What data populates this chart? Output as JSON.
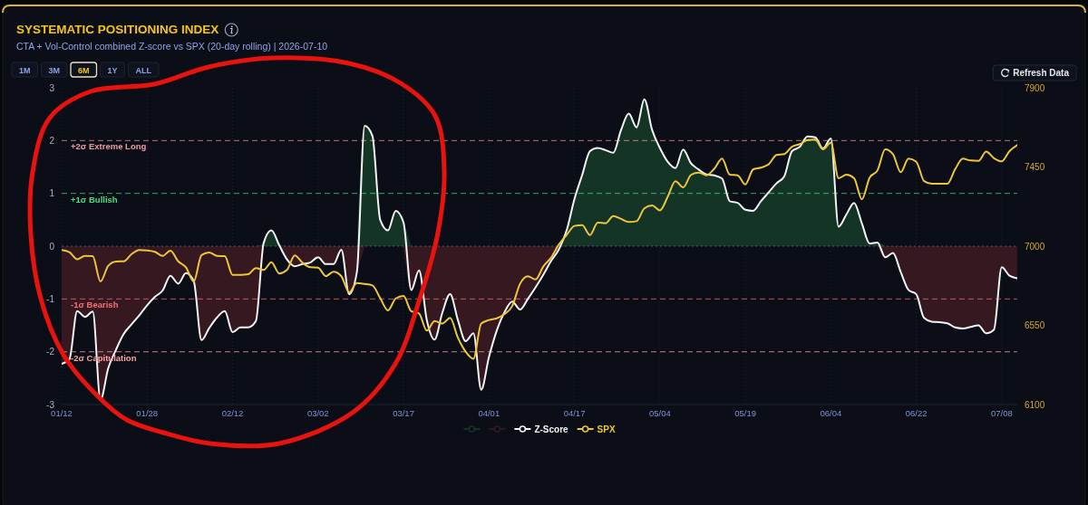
{
  "chart_data": {
    "type": "line",
    "title": "SYSTEMATIC POSITIONING INDEX",
    "subtitle": "CTA + Vol-Control combined Z-score vs SPX (20-day rolling) | 2026-07-10",
    "categories": [
      "01/12",
      null,
      null,
      null,
      null,
      null,
      null,
      null,
      null,
      null,
      null,
      "01/28",
      null,
      null,
      null,
      null,
      null,
      null,
      null,
      null,
      null,
      null,
      "02/12",
      null,
      null,
      null,
      null,
      null,
      null,
      null,
      null,
      null,
      null,
      "03/02",
      null,
      null,
      null,
      null,
      null,
      null,
      null,
      null,
      null,
      null,
      "03/17",
      null,
      null,
      null,
      null,
      null,
      null,
      null,
      null,
      null,
      null,
      "04/01",
      null,
      null,
      null,
      null,
      null,
      null,
      null,
      null,
      null,
      null,
      "04/17",
      null,
      null,
      null,
      null,
      null,
      null,
      null,
      null,
      null,
      null,
      "05/04",
      null,
      null,
      null,
      null,
      null,
      null,
      null,
      null,
      null,
      null,
      "05/19",
      null,
      null,
      null,
      null,
      null,
      null,
      null,
      null,
      null,
      null,
      "06/04",
      null,
      null,
      null,
      null,
      null,
      null,
      null,
      null,
      null,
      null,
      "06/22",
      null,
      null,
      null,
      null,
      null,
      null,
      null,
      null,
      null,
      null,
      "07/08",
      null,
      null
    ],
    "series": [
      {
        "type": "area",
        "color": "#143526",
        "values": [
          null,
          null,
          null,
          null,
          null,
          null,
          null,
          null,
          null,
          null,
          null,
          null,
          null,
          null,
          null,
          null,
          null,
          null,
          null,
          null,
          null,
          null,
          null,
          null,
          null,
          0,
          0.06,
          0.3,
          0.02,
          0,
          null,
          null,
          null,
          null,
          null,
          null,
          null,
          null,
          0,
          2.28,
          2.09,
          0.5,
          0.3,
          0.67,
          0.45,
          0,
          null,
          null,
          null,
          null,
          null,
          null,
          null,
          null,
          null,
          null,
          null,
          null,
          null,
          null,
          null,
          null,
          null,
          null,
          0,
          0.3,
          0.89,
          1.35,
          1.8,
          1.86,
          1.82,
          1.77,
          2.2,
          2.51,
          2.25,
          2.78,
          2.2,
          1.86,
          1.6,
          1.48,
          1.83,
          1.57,
          1.45,
          1.36,
          1.34,
          1.28,
          0.85,
          0.82,
          0.69,
          0.67,
          0.85,
          1.02,
          1.19,
          1.32,
          1.8,
          1.88,
          2.08,
          2.06,
          1.85,
          2.04,
          0.37,
          0.6,
          0.82,
          0.43,
          0.05,
          0.07,
          0,
          null,
          null,
          null,
          null,
          null,
          null,
          null,
          null,
          null,
          null,
          null,
          null,
          null,
          null,
          null,
          null,
          null
        ]
      },
      {
        "type": "area",
        "color": "#361820",
        "values": [
          -2.23,
          -2.14,
          -1.23,
          -1.34,
          -1.24,
          -2.91,
          -2.31,
          -1.96,
          -1.66,
          -1.48,
          -1.31,
          -1.12,
          -0.96,
          -0.84,
          -0.56,
          -0.71,
          -0.51,
          -0.66,
          -1.78,
          -1.55,
          -1.35,
          -1.23,
          -1.63,
          -1.54,
          -1.54,
          -1.42,
          0,
          null,
          0,
          -0.25,
          -0.38,
          -0.34,
          -0.31,
          -0.21,
          -0.34,
          -0.34,
          -0.07,
          -0.91,
          -0.49,
          0,
          null,
          null,
          null,
          null,
          0,
          -0.83,
          -0.46,
          -1.4,
          -1.77,
          -1.26,
          -0.91,
          -1.4,
          -1.8,
          -1.65,
          -2.72,
          -2.1,
          -1.6,
          -1.25,
          -1.05,
          -1.2,
          -1.0,
          -0.78,
          -0.54,
          -0.28,
          -0.06,
          0,
          null,
          null,
          null,
          null,
          null,
          null,
          null,
          null,
          null,
          null,
          null,
          null,
          null,
          null,
          null,
          null,
          null,
          null,
          null,
          null,
          null,
          null,
          null,
          null,
          null,
          null,
          null,
          null,
          null,
          null,
          null,
          null,
          null,
          null,
          null,
          null,
          null,
          null,
          null,
          0,
          -0.21,
          -0.13,
          -0.49,
          -0.83,
          -0.91,
          -1.36,
          -1.43,
          -1.44,
          -1.46,
          -1.54,
          -1.56,
          -1.53,
          -1.5,
          -1.65,
          -1.58,
          -0.4,
          -0.56,
          -0.61
        ]
      },
      {
        "name": "Z-Score",
        "color": "#f4f4f4",
        "values": [
          -2.23,
          -2.14,
          -1.23,
          -1.34,
          -1.24,
          -2.91,
          -2.31,
          -1.96,
          -1.66,
          -1.48,
          -1.31,
          -1.12,
          -0.96,
          -0.84,
          -0.56,
          -0.71,
          -0.51,
          -0.66,
          -1.78,
          -1.55,
          -1.35,
          -1.23,
          -1.63,
          -1.54,
          -1.54,
          -1.42,
          0.06,
          0.3,
          0.02,
          -0.25,
          -0.38,
          -0.34,
          -0.31,
          -0.21,
          -0.34,
          -0.34,
          -0.07,
          -0.91,
          -0.49,
          2.28,
          2.09,
          0.5,
          0.3,
          0.67,
          0.45,
          -0.83,
          -0.46,
          -1.4,
          -1.77,
          -1.26,
          -0.91,
          -1.4,
          -1.8,
          -1.65,
          -2.72,
          -2.1,
          -1.6,
          -1.25,
          -1.05,
          -1.2,
          -1.0,
          -0.78,
          -0.54,
          -0.28,
          -0.06,
          0.3,
          0.89,
          1.35,
          1.8,
          1.86,
          1.82,
          1.77,
          2.2,
          2.51,
          2.25,
          2.78,
          2.2,
          1.86,
          1.6,
          1.48,
          1.83,
          1.57,
          1.45,
          1.36,
          1.34,
          1.28,
          0.85,
          0.82,
          0.69,
          0.67,
          0.85,
          1.02,
          1.19,
          1.32,
          1.8,
          1.88,
          2.08,
          2.06,
          1.85,
          2.04,
          0.37,
          0.6,
          0.82,
          0.43,
          0.05,
          0.07,
          -0.21,
          -0.13,
          -0.49,
          -0.83,
          -0.91,
          -1.36,
          -1.43,
          -1.44,
          -1.46,
          -1.54,
          -1.56,
          -1.53,
          -1.5,
          -1.65,
          -1.58,
          -0.4,
          -0.56,
          -0.61
        ]
      },
      {
        "name": "SPX",
        "color": "#eec63a",
        "axis": "y2",
        "values": [
          6978,
          6966,
          6926,
          6945,
          6943,
          6799,
          6889,
          6913,
          6914,
          6955,
          6978,
          6976,
          6968,
          6945,
          6974,
          6914,
          6880,
          6799,
          6949,
          6964,
          6945,
          6943,
          6837,
          6837,
          6840,
          6875,
          6865,
          6909,
          6845,
          6865,
          6947,
          6906,
          6880,
          6878,
          6830,
          6855,
          6829,
          6738,
          6790,
          6785,
          6777,
          6705,
          6635,
          6703,
          6717,
          6630,
          6618,
          6520,
          6575,
          6560,
          6592,
          6480,
          6400,
          6360,
          6560,
          6580,
          6590,
          6614,
          6660,
          6786,
          6829,
          6811,
          6885,
          6935,
          7010,
          7064,
          7115,
          7120,
          7063,
          7134,
          7130,
          7171,
          7155,
          7137,
          7142,
          7215,
          7231,
          7203,
          7280,
          7369,
          7334,
          7405,
          7418,
          7403,
          7440,
          7497,
          7406,
          7403,
          7351,
          7436,
          7446,
          7465,
          7518,
          7523,
          7565,
          7580,
          7603,
          7605,
          7550,
          7588,
          7386,
          7406,
          7386,
          7266,
          7390,
          7430,
          7550,
          7523,
          7420,
          7497,
          7480,
          7370,
          7355,
          7355,
          7355,
          7437,
          7497,
          7487,
          7485,
          7537,
          7500,
          7482,
          7540,
          7574
        ]
      }
    ],
    "ylim": [
      -3,
      3
    ],
    "yticks": [
      -3,
      -2,
      -1,
      0,
      1,
      2,
      3
    ],
    "y2lim": [
      6100,
      7900
    ],
    "y2ticks": [
      6100,
      6550,
      7000,
      7450,
      7900
    ],
    "ref_lines": [
      {
        "axis": "y",
        "value": 2,
        "label": "+2σ Extreme Long",
        "color": "#f09aa4",
        "line_style": "dashed"
      },
      {
        "axis": "y",
        "value": 1,
        "label": "+1σ Bullish",
        "color": "#4ade80",
        "line_style": "dashed"
      },
      {
        "axis": "y",
        "value": 0,
        "color": "#7282a8",
        "line_style": "dotted"
      },
      {
        "axis": "y",
        "value": -1,
        "label": "-1σ Bearish",
        "color": "#f87171",
        "line_style": "dashed"
      },
      {
        "axis": "y",
        "value": -2,
        "label": "-2σ Capitulation",
        "color": "#fca5a5",
        "line_style": "dashed"
      }
    ],
    "grid": "x",
    "legend": "bottom",
    "annotations": [
      "1M",
      "3M",
      "6M",
      "1Y",
      "ALL",
      "Refresh Data"
    ]
  }
}
